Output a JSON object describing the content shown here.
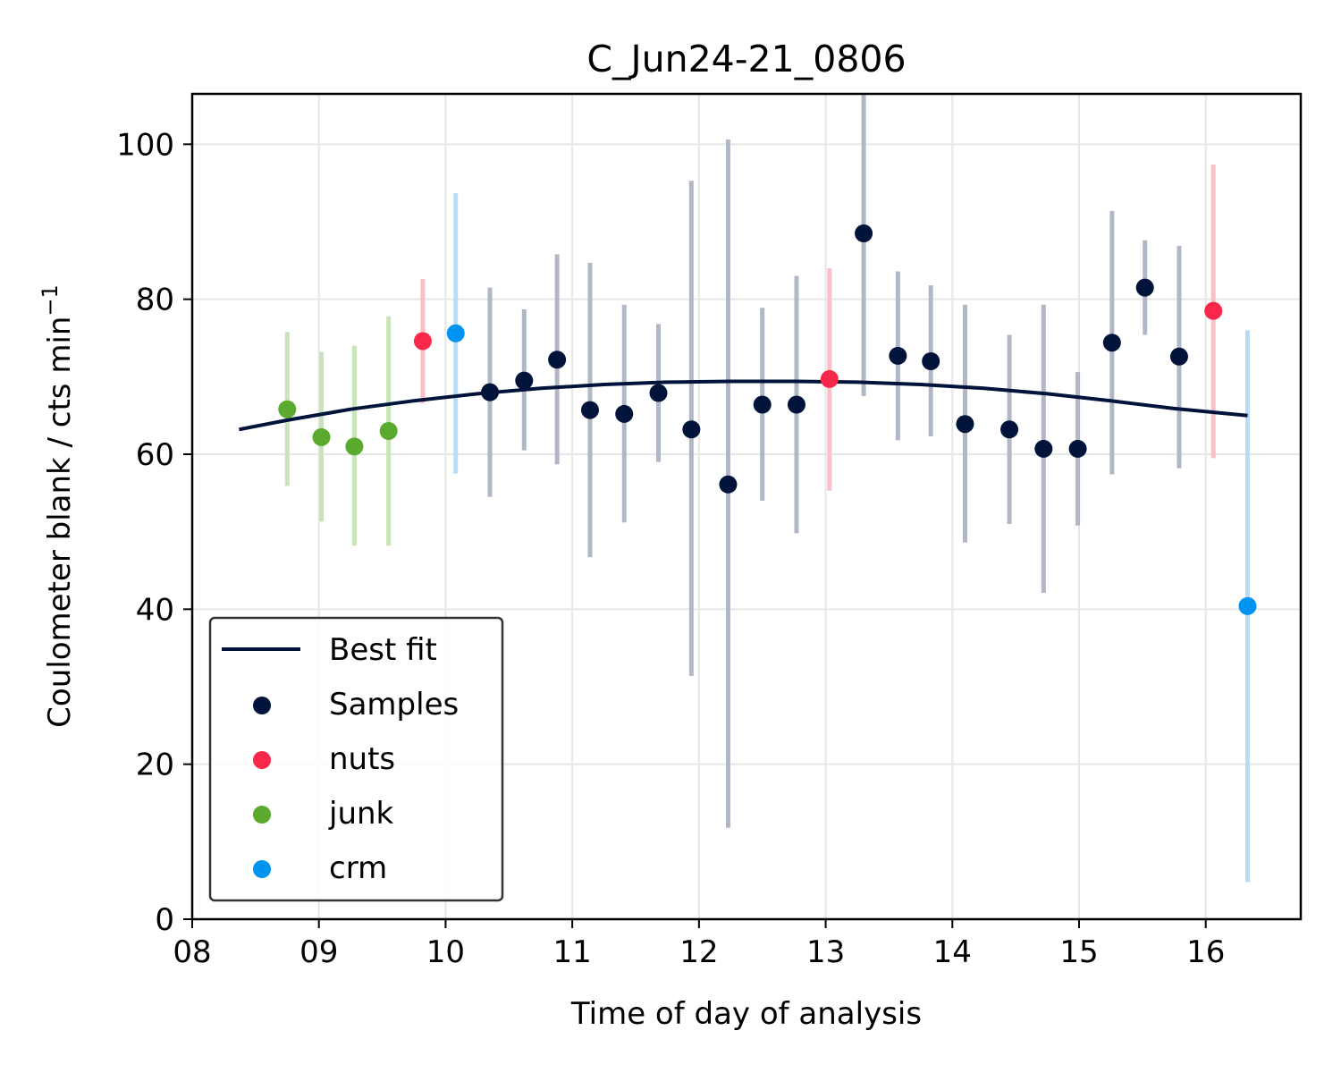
{
  "chart_data": {
    "type": "scatter",
    "title": "C_Jun24-21_0806",
    "xlabel": "Time of day of analysis",
    "ylabel": "Coulometer blank / cts min",
    "ylabel_sup": "−1",
    "xlim": [
      8.0,
      16.75
    ],
    "ylim": [
      0,
      106.5
    ],
    "xticks": [
      8,
      9,
      10,
      11,
      12,
      13,
      14,
      15,
      16
    ],
    "xtick_labels": [
      "08",
      "09",
      "10",
      "11",
      "12",
      "13",
      "14",
      "15",
      "16"
    ],
    "yticks": [
      0,
      20,
      40,
      60,
      80,
      100
    ],
    "ytick_labels": [
      "0",
      "20",
      "40",
      "60",
      "80",
      "100"
    ],
    "grid": true,
    "legend_position": "lower-left",
    "best_fit": {
      "name": "Best fit",
      "color": "#00133a",
      "x": [
        8.37,
        8.75,
        9.25,
        9.75,
        10.25,
        10.75,
        11.25,
        11.75,
        12.25,
        12.75,
        13.25,
        13.75,
        14.25,
        14.75,
        15.25,
        15.75,
        16.33
      ],
      "y": [
        63.2,
        64.4,
        65.8,
        66.9,
        67.8,
        68.5,
        69.0,
        69.3,
        69.4,
        69.4,
        69.3,
        69.0,
        68.5,
        67.8,
        66.9,
        65.9,
        65.0
      ]
    },
    "series": [
      {
        "name": "Samples",
        "color": "#00133a",
        "errcolor": "#b0b7c7",
        "points": [
          {
            "x": 10.35,
            "y": 68.0,
            "lo": 54.5,
            "hi": 81.5
          },
          {
            "x": 10.62,
            "y": 69.5,
            "lo": 60.5,
            "hi": 78.7
          },
          {
            "x": 10.88,
            "y": 72.2,
            "lo": 58.7,
            "hi": 85.8
          },
          {
            "x": 11.14,
            "y": 65.7,
            "lo": 46.7,
            "hi": 84.7
          },
          {
            "x": 11.41,
            "y": 65.2,
            "lo": 51.2,
            "hi": 79.3
          },
          {
            "x": 11.68,
            "y": 67.9,
            "lo": 59.0,
            "hi": 76.8
          },
          {
            "x": 11.94,
            "y": 63.2,
            "lo": 31.4,
            "hi": 95.3
          },
          {
            "x": 12.23,
            "y": 56.1,
            "lo": 11.8,
            "hi": 100.6
          },
          {
            "x": 12.5,
            "y": 66.4,
            "lo": 54.0,
            "hi": 78.9
          },
          {
            "x": 12.77,
            "y": 66.4,
            "lo": 49.8,
            "hi": 83.0
          },
          {
            "x": 13.3,
            "y": 88.5,
            "lo": 67.5,
            "hi": 108.0
          },
          {
            "x": 13.57,
            "y": 72.7,
            "lo": 61.8,
            "hi": 83.6
          },
          {
            "x": 13.83,
            "y": 72.0,
            "lo": 62.3,
            "hi": 81.8
          },
          {
            "x": 14.1,
            "y": 63.9,
            "lo": 48.6,
            "hi": 79.3
          },
          {
            "x": 14.45,
            "y": 63.2,
            "lo": 51.0,
            "hi": 75.4
          },
          {
            "x": 14.72,
            "y": 60.7,
            "lo": 42.1,
            "hi": 79.3
          },
          {
            "x": 14.99,
            "y": 60.7,
            "lo": 50.8,
            "hi": 70.6
          },
          {
            "x": 15.26,
            "y": 74.4,
            "lo": 57.4,
            "hi": 91.4
          },
          {
            "x": 15.52,
            "y": 81.5,
            "lo": 75.4,
            "hi": 87.6
          },
          {
            "x": 15.79,
            "y": 72.6,
            "lo": 58.2,
            "hi": 86.9
          }
        ]
      },
      {
        "name": "nuts",
        "color": "#f7284a",
        "errcolor": "#fbbfc8",
        "points": [
          {
            "x": 9.82,
            "y": 74.6,
            "lo": 66.6,
            "hi": 82.6
          },
          {
            "x": 13.03,
            "y": 69.7,
            "lo": 55.3,
            "hi": 84.0
          },
          {
            "x": 16.06,
            "y": 78.5,
            "lo": 59.5,
            "hi": 97.4
          }
        ]
      },
      {
        "name": "junk",
        "color": "#5aaa2e",
        "errcolor": "#c9e4bb",
        "points": [
          {
            "x": 8.75,
            "y": 65.8,
            "lo": 55.9,
            "hi": 75.8
          },
          {
            "x": 9.02,
            "y": 62.2,
            "lo": 51.3,
            "hi": 73.2
          },
          {
            "x": 9.28,
            "y": 61.0,
            "lo": 48.2,
            "hi": 74.0
          },
          {
            "x": 9.55,
            "y": 63.0,
            "lo": 48.2,
            "hi": 77.8
          }
        ]
      },
      {
        "name": "crm",
        "color": "#0094f0",
        "errcolor": "#b3ddf8",
        "points": [
          {
            "x": 10.08,
            "y": 75.6,
            "lo": 57.5,
            "hi": 93.7
          },
          {
            "x": 16.33,
            "y": 40.4,
            "lo": 4.8,
            "hi": 76.0
          }
        ]
      }
    ]
  }
}
